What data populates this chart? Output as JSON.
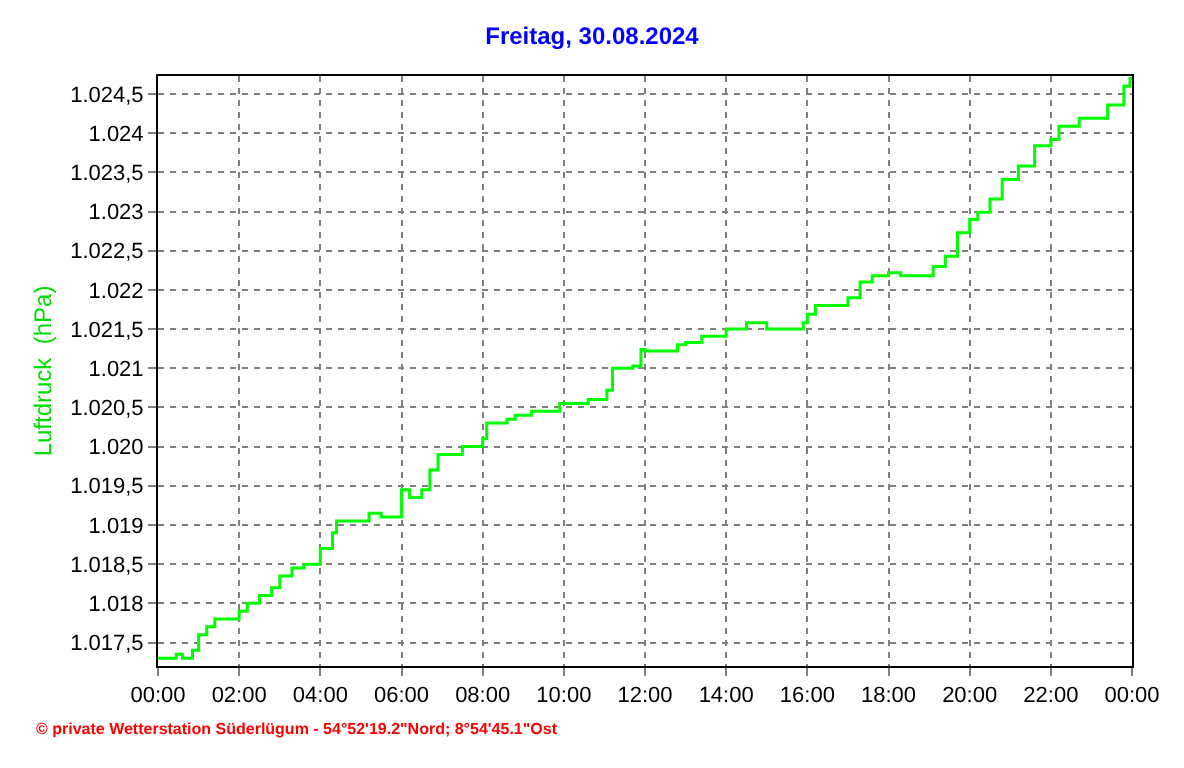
{
  "chart_data": {
    "type": "step",
    "title": "Freitag, 30.08.2024",
    "ylabel": "Luftdruck  (hPa)",
    "annotations": [
      "© private Wetterstation Süderlügum - 54°52'19.2\"Nord; 8°54'45.1\"Ost"
    ],
    "grid": true,
    "marker": "none",
    "line_style": "solid",
    "xlim": [
      0,
      24
    ],
    "ylim": [
      1017.2,
      1024.73
    ],
    "xticks": [
      {
        "value": 0,
        "label": "00:00"
      },
      {
        "value": 2,
        "label": "02:00"
      },
      {
        "value": 4,
        "label": "04:00"
      },
      {
        "value": 6,
        "label": "06:00"
      },
      {
        "value": 8,
        "label": "08:00"
      },
      {
        "value": 10,
        "label": "10:00"
      },
      {
        "value": 12,
        "label": "12:00"
      },
      {
        "value": 14,
        "label": "14:00"
      },
      {
        "value": 16,
        "label": "16:00"
      },
      {
        "value": 18,
        "label": "18:00"
      },
      {
        "value": 20,
        "label": "20:00"
      },
      {
        "value": 22,
        "label": "22:00"
      },
      {
        "value": 24,
        "label": "00:00"
      }
    ],
    "yticks": [
      {
        "value": 1017.5,
        "label": "1.017,5"
      },
      {
        "value": 1018,
        "label": "1.018"
      },
      {
        "value": 1018.5,
        "label": "1.018,5"
      },
      {
        "value": 1019,
        "label": "1.019"
      },
      {
        "value": 1019.5,
        "label": "1.019,5"
      },
      {
        "value": 1020,
        "label": "1.020"
      },
      {
        "value": 1020.5,
        "label": "1.020,5"
      },
      {
        "value": 1021,
        "label": "1.021"
      },
      {
        "value": 1021.5,
        "label": "1.021,5"
      },
      {
        "value": 1022,
        "label": "1.022"
      },
      {
        "value": 1022.5,
        "label": "1.022,5"
      },
      {
        "value": 1023,
        "label": "1.023"
      },
      {
        "value": 1023.5,
        "label": "1.023,5"
      },
      {
        "value": 1024,
        "label": "1.024"
      },
      {
        "value": 1024.5,
        "label": "1.024,5"
      }
    ],
    "series": [
      {
        "color": "#00ff00",
        "x": [
          0,
          0.45,
          0.6,
          0.85,
          1.0,
          1.2,
          1.4,
          2.0,
          2.2,
          2.5,
          2.8,
          3.0,
          3.3,
          3.6,
          4.0,
          4.3,
          4.4,
          5.2,
          5.5,
          6.0,
          6.2,
          6.5,
          6.7,
          6.9,
          7.5,
          8.0,
          8.1,
          8.6,
          8.8,
          9.2,
          9.9,
          10.6,
          11.06,
          11.2,
          11.7,
          11.9,
          12.0,
          12.8,
          13.0,
          13.4,
          14.0,
          14.5,
          15.0,
          15.9,
          16.0,
          16.2,
          17.0,
          17.3,
          17.6,
          18.0,
          18.3,
          19.1,
          19.4,
          19.7,
          20.0,
          20.2,
          20.5,
          20.8,
          21.2,
          21.6,
          22.0,
          22.2,
          22.7,
          23.4,
          23.8,
          23.95,
          24
        ],
        "values": [
          1017.3,
          1017.35,
          1017.3,
          1017.4,
          1017.6,
          1017.7,
          1017.8,
          1017.9,
          1018.0,
          1018.1,
          1018.2,
          1018.35,
          1018.45,
          1018.5,
          1018.7,
          1018.9,
          1019.05,
          1019.15,
          1019.1,
          1019.45,
          1019.35,
          1019.45,
          1019.7,
          1019.9,
          1020.0,
          1020.1,
          1020.3,
          1020.35,
          1020.4,
          1020.45,
          1020.55,
          1020.6,
          1020.72,
          1021.0,
          1021.03,
          1021.24,
          1021.22,
          1021.3,
          1021.33,
          1021.41,
          1021.5,
          1021.58,
          1021.5,
          1021.58,
          1021.69,
          1021.8,
          1021.9,
          1022.1,
          1022.18,
          1022.22,
          1022.18,
          1022.3,
          1022.43,
          1022.73,
          1022.9,
          1022.99,
          1023.16,
          1023.41,
          1023.58,
          1023.84,
          1023.92,
          1024.09,
          1024.19,
          1024.36,
          1024.6,
          1024.7,
          1024.7
        ]
      }
    ]
  }
}
